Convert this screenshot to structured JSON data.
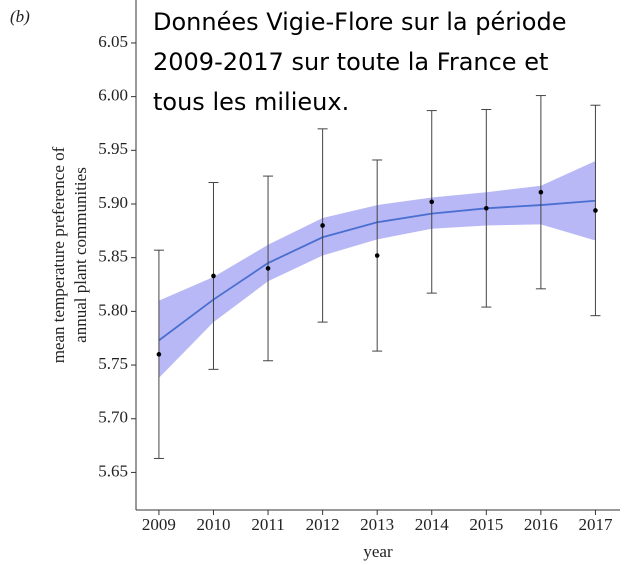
{
  "chart_data": {
    "type": "line",
    "panel_label": "(b)",
    "annotation": [
      "Données Vigie-Flore sur la période",
      "2009-2017 sur toute la France et",
      "tous les milieux."
    ],
    "xlabel": "year",
    "ylabel": [
      "mean temperature preference of",
      "annual plant communities"
    ],
    "x": [
      2009,
      2010,
      2011,
      2012,
      2013,
      2014,
      2015,
      2016,
      2017
    ],
    "points": [
      5.76,
      5.833,
      5.84,
      5.88,
      5.852,
      5.902,
      5.896,
      5.911,
      5.894
    ],
    "errors": [
      0.097,
      0.087,
      0.086,
      0.09,
      0.089,
      0.085,
      0.092,
      0.09,
      0.098
    ],
    "fit": [
      5.773,
      5.811,
      5.845,
      5.869,
      5.883,
      5.891,
      5.896,
      5.899,
      5.903
    ],
    "fit_lower": [
      5.738,
      5.79,
      5.828,
      5.852,
      5.867,
      5.877,
      5.88,
      5.881,
      5.866
    ],
    "fit_upper": [
      5.81,
      5.832,
      5.862,
      5.887,
      5.899,
      5.906,
      5.911,
      5.917,
      5.94
    ],
    "fit_color": "#4a6fd0",
    "band_color": "#b8b8f6",
    "point_color": "#000000",
    "xlim": [
      2008.58,
      2017.45
    ],
    "ylim": [
      5.615,
      6.09
    ],
    "xticks": [
      2009,
      2010,
      2011,
      2012,
      2013,
      2014,
      2015,
      2016,
      2017
    ],
    "yticks": [
      5.65,
      {
        "value": 5.7,
        "label": "5.70"
      },
      5.75,
      {
        "value": 5.8,
        "label": "5.80"
      },
      5.85,
      {
        "value": 5.9,
        "label": "5.90"
      },
      5.95,
      {
        "value": 6,
        "label": "6.00"
      },
      6.05
    ]
  }
}
